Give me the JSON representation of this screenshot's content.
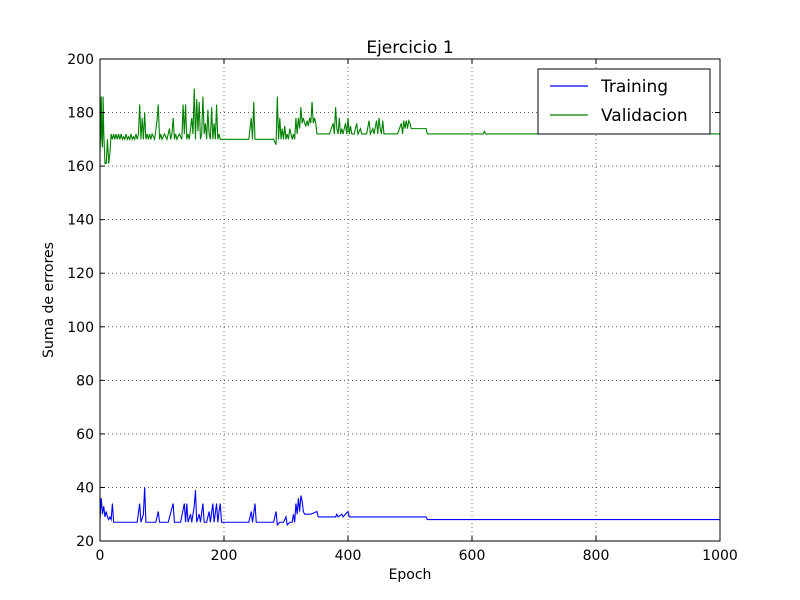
{
  "chart_data": {
    "type": "line",
    "title": "Ejercicio 1",
    "xlabel": "Epoch",
    "ylabel": "Suma de errores",
    "xlim": [
      0,
      1000
    ],
    "ylim": [
      20,
      200
    ],
    "xticks": [
      0,
      200,
      400,
      600,
      800,
      1000
    ],
    "yticks": [
      20,
      40,
      60,
      80,
      100,
      120,
      140,
      160,
      180,
      200
    ],
    "grid": true,
    "legend_position": "top-right",
    "series": [
      {
        "name": "Training",
        "color": "#0000ff",
        "points": [
          [
            0,
            28
          ],
          [
            2,
            36
          ],
          [
            4,
            30
          ],
          [
            6,
            33
          ],
          [
            8,
            29
          ],
          [
            10,
            31
          ],
          [
            12,
            29
          ],
          [
            14,
            28
          ],
          [
            16,
            29
          ],
          [
            18,
            28
          ],
          [
            20,
            34
          ],
          [
            22,
            27
          ],
          [
            30,
            27
          ],
          [
            40,
            27
          ],
          [
            50,
            27
          ],
          [
            60,
            27
          ],
          [
            64,
            34
          ],
          [
            66,
            27
          ],
          [
            70,
            30
          ],
          [
            72,
            40
          ],
          [
            74,
            27
          ],
          [
            80,
            27
          ],
          [
            90,
            27
          ],
          [
            94,
            31
          ],
          [
            96,
            27
          ],
          [
            100,
            27
          ],
          [
            110,
            27
          ],
          [
            118,
            34
          ],
          [
            120,
            27
          ],
          [
            130,
            27
          ],
          [
            136,
            34
          ],
          [
            138,
            27
          ],
          [
            140,
            34
          ],
          [
            142,
            27
          ],
          [
            146,
            30
          ],
          [
            148,
            27
          ],
          [
            152,
            33
          ],
          [
            154,
            39
          ],
          [
            156,
            27
          ],
          [
            160,
            30
          ],
          [
            162,
            27
          ],
          [
            166,
            34
          ],
          [
            168,
            27
          ],
          [
            172,
            27
          ],
          [
            176,
            31
          ],
          [
            178,
            27
          ],
          [
            182,
            34
          ],
          [
            184,
            27
          ],
          [
            188,
            34
          ],
          [
            190,
            27
          ],
          [
            192,
            31
          ],
          [
            194,
            34
          ],
          [
            196,
            27
          ],
          [
            200,
            27
          ],
          [
            220,
            27
          ],
          [
            240,
            27
          ],
          [
            244,
            31
          ],
          [
            246,
            27
          ],
          [
            250,
            34
          ],
          [
            252,
            27
          ],
          [
            260,
            27
          ],
          [
            270,
            27
          ],
          [
            280,
            27
          ],
          [
            284,
            31
          ],
          [
            286,
            26
          ],
          [
            290,
            27
          ],
          [
            296,
            27
          ],
          [
            300,
            29
          ],
          [
            302,
            26
          ],
          [
            306,
            27
          ],
          [
            310,
            27
          ],
          [
            312,
            30
          ],
          [
            314,
            27
          ],
          [
            316,
            34
          ],
          [
            318,
            30
          ],
          [
            320,
            36
          ],
          [
            322,
            31
          ],
          [
            324,
            37
          ],
          [
            326,
            35
          ],
          [
            328,
            31
          ],
          [
            330,
            30
          ],
          [
            340,
            30
          ],
          [
            350,
            31
          ],
          [
            352,
            29
          ],
          [
            370,
            29
          ],
          [
            380,
            29
          ],
          [
            382,
            30
          ],
          [
            384,
            29
          ],
          [
            390,
            30
          ],
          [
            392,
            29
          ],
          [
            400,
            31
          ],
          [
            402,
            29
          ],
          [
            440,
            29
          ],
          [
            480,
            29
          ],
          [
            500,
            29
          ],
          [
            520,
            29
          ],
          [
            526,
            29
          ],
          [
            528,
            28
          ],
          [
            560,
            28
          ],
          [
            600,
            28
          ],
          [
            700,
            28
          ],
          [
            800,
            28
          ],
          [
            900,
            28
          ],
          [
            1000,
            28
          ]
        ]
      },
      {
        "name": "Validacion",
        "color": "#008000",
        "points": [
          [
            0,
            165
          ],
          [
            1,
            172
          ],
          [
            2,
            186
          ],
          [
            3,
            170
          ],
          [
            4,
            167
          ],
          [
            5,
            186
          ],
          [
            6,
            173
          ],
          [
            7,
            167
          ],
          [
            8,
            161
          ],
          [
            10,
            161
          ],
          [
            12,
            170
          ],
          [
            14,
            161
          ],
          [
            16,
            165
          ],
          [
            18,
            172
          ],
          [
            20,
            170
          ],
          [
            22,
            172
          ],
          [
            24,
            170
          ],
          [
            26,
            172
          ],
          [
            28,
            170
          ],
          [
            30,
            172
          ],
          [
            32,
            170
          ],
          [
            34,
            172
          ],
          [
            36,
            170
          ],
          [
            38,
            171
          ],
          [
            40,
            170
          ],
          [
            42,
            172
          ],
          [
            44,
            170
          ],
          [
            46,
            171
          ],
          [
            48,
            170
          ],
          [
            50,
            172
          ],
          [
            52,
            170
          ],
          [
            54,
            171
          ],
          [
            56,
            170
          ],
          [
            58,
            172
          ],
          [
            60,
            170
          ],
          [
            62,
            172
          ],
          [
            64,
            183
          ],
          [
            66,
            170
          ],
          [
            68,
            178
          ],
          [
            70,
            170
          ],
          [
            72,
            180
          ],
          [
            74,
            170
          ],
          [
            76,
            172
          ],
          [
            78,
            170
          ],
          [
            80,
            172
          ],
          [
            82,
            170
          ],
          [
            84,
            172
          ],
          [
            88,
            170
          ],
          [
            92,
            177
          ],
          [
            94,
            183
          ],
          [
            96,
            170
          ],
          [
            98,
            172
          ],
          [
            100,
            170
          ],
          [
            104,
            172
          ],
          [
            108,
            170
          ],
          [
            112,
            174
          ],
          [
            114,
            170
          ],
          [
            116,
            172
          ],
          [
            118,
            178
          ],
          [
            120,
            170
          ],
          [
            122,
            172
          ],
          [
            124,
            170
          ],
          [
            128,
            172
          ],
          [
            132,
            170
          ],
          [
            134,
            183
          ],
          [
            136,
            172
          ],
          [
            138,
            183
          ],
          [
            140,
            170
          ],
          [
            142,
            172
          ],
          [
            144,
            170
          ],
          [
            146,
            174
          ],
          [
            148,
            178
          ],
          [
            150,
            172
          ],
          [
            152,
            189
          ],
          [
            154,
            170
          ],
          [
            156,
            185
          ],
          [
            158,
            173
          ],
          [
            160,
            184
          ],
          [
            162,
            170
          ],
          [
            164,
            172
          ],
          [
            166,
            186
          ],
          [
            168,
            172
          ],
          [
            170,
            176
          ],
          [
            172,
            170
          ],
          [
            174,
            181
          ],
          [
            176,
            172
          ],
          [
            178,
            170
          ],
          [
            180,
            182
          ],
          [
            182,
            170
          ],
          [
            184,
            176
          ],
          [
            186,
            170
          ],
          [
            188,
            183
          ],
          [
            190,
            170
          ],
          [
            192,
            172
          ],
          [
            194,
            170
          ],
          [
            200,
            170
          ],
          [
            220,
            170
          ],
          [
            240,
            170
          ],
          [
            244,
            178
          ],
          [
            246,
            170
          ],
          [
            248,
            184
          ],
          [
            250,
            170
          ],
          [
            260,
            170
          ],
          [
            270,
            170
          ],
          [
            280,
            170
          ],
          [
            284,
            168
          ],
          [
            286,
            186
          ],
          [
            288,
            170
          ],
          [
            290,
            178
          ],
          [
            292,
            170
          ],
          [
            294,
            174
          ],
          [
            296,
            170
          ],
          [
            298,
            175
          ],
          [
            300,
            170
          ],
          [
            302,
            172
          ],
          [
            304,
            170
          ],
          [
            306,
            174
          ],
          [
            308,
            172
          ],
          [
            310,
            170
          ],
          [
            312,
            172
          ],
          [
            314,
            170
          ],
          [
            316,
            178
          ],
          [
            318,
            172
          ],
          [
            320,
            178
          ],
          [
            322,
            174
          ],
          [
            324,
            182
          ],
          [
            326,
            176
          ],
          [
            328,
            178
          ],
          [
            330,
            176
          ],
          [
            332,
            175
          ],
          [
            334,
            177
          ],
          [
            336,
            175
          ],
          [
            338,
            178
          ],
          [
            340,
            176
          ],
          [
            342,
            184
          ],
          [
            344,
            176
          ],
          [
            346,
            178
          ],
          [
            348,
            176
          ],
          [
            350,
            172
          ],
          [
            352,
            172
          ],
          [
            360,
            172
          ],
          [
            370,
            172
          ],
          [
            376,
            176
          ],
          [
            378,
            172
          ],
          [
            380,
            182
          ],
          [
            382,
            174
          ],
          [
            384,
            172
          ],
          [
            386,
            178
          ],
          [
            388,
            172
          ],
          [
            390,
            174
          ],
          [
            392,
            172
          ],
          [
            396,
            176
          ],
          [
            398,
            172
          ],
          [
            400,
            178
          ],
          [
            402,
            172
          ],
          [
            404,
            175
          ],
          [
            406,
            172
          ],
          [
            410,
            172
          ],
          [
            414,
            176
          ],
          [
            416,
            172
          ],
          [
            420,
            174
          ],
          [
            422,
            172
          ],
          [
            426,
            172
          ],
          [
            430,
            172
          ],
          [
            434,
            177
          ],
          [
            436,
            172
          ],
          [
            440,
            174
          ],
          [
            442,
            172
          ],
          [
            446,
            177
          ],
          [
            448,
            172
          ],
          [
            450,
            178
          ],
          [
            452,
            174
          ],
          [
            454,
            172
          ],
          [
            456,
            177
          ],
          [
            458,
            172
          ],
          [
            470,
            172
          ],
          [
            480,
            172
          ],
          [
            486,
            176
          ],
          [
            488,
            172
          ],
          [
            490,
            177
          ],
          [
            492,
            174
          ],
          [
            494,
            177
          ],
          [
            496,
            174
          ],
          [
            498,
            177
          ],
          [
            500,
            176
          ],
          [
            502,
            174
          ],
          [
            504,
            174
          ],
          [
            510,
            174
          ],
          [
            520,
            174
          ],
          [
            526,
            174
          ],
          [
            528,
            172
          ],
          [
            560,
            172
          ],
          [
            600,
            172
          ],
          [
            618,
            172
          ],
          [
            620,
            173
          ],
          [
            622,
            172
          ],
          [
            700,
            172
          ],
          [
            800,
            172
          ],
          [
            900,
            172
          ],
          [
            1000,
            172
          ]
        ]
      }
    ]
  }
}
